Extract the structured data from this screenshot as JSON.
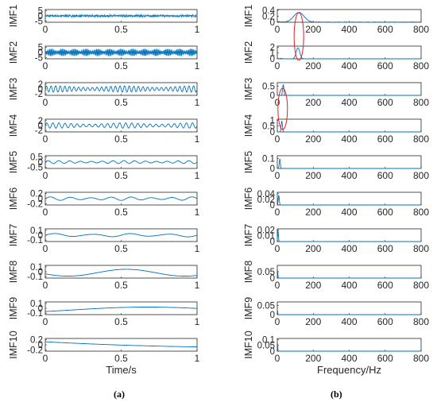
{
  "captions": {
    "left": "(a)",
    "right": "(b)"
  },
  "colors": {
    "signal": "#0072BD",
    "axis": "#262626",
    "highlight": "#E0202A"
  },
  "chart_data": [
    {
      "type": "line",
      "panel": "a",
      "xlabel": "Time/s",
      "xlim": [
        0,
        1
      ],
      "xticks": [
        "0",
        "0.5",
        "1"
      ],
      "subplots": [
        {
          "ylabel": "IMF1",
          "yticks": [
            "5",
            "0",
            "-5"
          ],
          "yvals": [
            5,
            0,
            -5
          ],
          "ylim": [
            -6,
            6
          ],
          "freq": 90,
          "amp": 0.6,
          "noise": true,
          "kind": "hf"
        },
        {
          "ylabel": "IMF2",
          "yticks": [
            "5",
            "0",
            "-5"
          ],
          "yvals": [
            5,
            0,
            -5
          ],
          "ylim": [
            -6,
            6
          ],
          "freq": 110,
          "amp": 3.5,
          "kind": "burst",
          "bursts": 13
        },
        {
          "ylabel": "IMF3",
          "yticks": [
            "2",
            "0",
            "-2"
          ],
          "yvals": [
            2,
            0,
            -2
          ],
          "ylim": [
            -2.6,
            2.6
          ],
          "freq": 33,
          "amp": 1.3,
          "kind": "am"
        },
        {
          "ylabel": "IMF4",
          "yticks": [
            "2",
            "0",
            "-2"
          ],
          "yvals": [
            2,
            0,
            -2
          ],
          "ylim": [
            -2.6,
            2.6
          ],
          "freq": 25,
          "amp": 1.1,
          "kind": "am"
        },
        {
          "ylabel": "IMF5",
          "yticks": [
            "0.5",
            "0",
            "-0.5"
          ],
          "yvals": [
            0.5,
            0,
            -0.5
          ],
          "ylim": [
            -0.6,
            0.6
          ],
          "freq": 14,
          "amp": 0.14,
          "kind": "am"
        },
        {
          "ylabel": "IMF6",
          "yticks": [
            "0.2",
            "0",
            "-0.2"
          ],
          "yvals": [
            0.2,
            0,
            -0.2
          ],
          "ylim": [
            -0.25,
            0.25
          ],
          "freq": 7.5,
          "amp": 0.07,
          "kind": "am"
        },
        {
          "ylabel": "IMF7",
          "yticks": [
            "0.1",
            "0",
            "-0.1"
          ],
          "yvals": [
            0.1,
            0,
            -0.1
          ],
          "ylim": [
            -0.13,
            0.13
          ],
          "freq": 4,
          "amp": 0.035,
          "kind": "am"
        },
        {
          "ylabel": "IMF8",
          "yticks": [
            "0.1",
            "0",
            "-0.1"
          ],
          "yvals": [
            0.1,
            0,
            -0.1
          ],
          "ylim": [
            -0.13,
            0.13
          ],
          "freq": 1.3,
          "amp": 0.07,
          "kind": "slow"
        },
        {
          "ylabel": "IMF9",
          "yticks": [
            "0.1",
            "0",
            "-0.1"
          ],
          "yvals": [
            0.1,
            0,
            -0.1
          ],
          "ylim": [
            -0.13,
            0.13
          ],
          "freq": 0.6,
          "amp": 0.045,
          "kind": "slow9"
        },
        {
          "ylabel": "IMF10",
          "yticks": [
            "0.2",
            "0",
            "-0.2"
          ],
          "yvals": [
            0.2,
            0,
            -0.2
          ],
          "ylim": [
            -0.25,
            0.25
          ],
          "kind": "trend"
        }
      ]
    },
    {
      "type": "line",
      "panel": "b",
      "xlabel": "Frequency/Hz",
      "xlim": [
        0,
        800
      ],
      "xticks": [
        "0",
        "200",
        "400",
        "600",
        "800"
      ],
      "subplots": [
        {
          "ylabel": "IMF1",
          "yticks": [
            "0.4",
            "0.2",
            "0"
          ],
          "yvals": [
            0.4,
            0.2,
            0
          ],
          "ylim": [
            0,
            0.42
          ],
          "peak": 120,
          "peakAmp": 0.32,
          "spread": 40,
          "floor": 0.01
        },
        {
          "ylabel": "IMF2",
          "yticks": [
            "2",
            "1",
            "0"
          ],
          "yvals": [
            2,
            1,
            0
          ],
          "ylim": [
            0,
            2.2
          ],
          "peak": 115,
          "peakAmp": 1.9,
          "spread": 14,
          "floor": 0.0
        },
        {
          "ylabel": "IMF3",
          "yticks": [
            "0.5",
            "0"
          ],
          "yvals": [
            0.5,
            0
          ],
          "ylim": [
            0,
            0.7
          ],
          "peak": 33,
          "peakAmp": 0.6,
          "spread": 5,
          "floor": 0.0
        },
        {
          "ylabel": "IMF4",
          "yticks": [
            "1",
            "0.5",
            "0"
          ],
          "yvals": [
            1,
            0.5,
            0
          ],
          "ylim": [
            0,
            1.1
          ],
          "peak": 25,
          "peakAmp": 0.95,
          "spread": 5,
          "floor": 0.0
        },
        {
          "ylabel": "IMF5",
          "yticks": [
            "0.1",
            "0"
          ],
          "yvals": [
            0.1,
            0
          ],
          "ylim": [
            0,
            0.13
          ],
          "peak": 14,
          "peakAmp": 0.1,
          "spread": 4,
          "floor": 0.0
        },
        {
          "ylabel": "IMF6",
          "yticks": [
            "0.04",
            "0.02",
            "0"
          ],
          "yvals": [
            0.04,
            0.02,
            0
          ],
          "ylim": [
            0,
            0.045
          ],
          "peak": 8,
          "peakAmp": 0.035,
          "spread": 4,
          "floor": 0.0
        },
        {
          "ylabel": "IMF7",
          "yticks": [
            "0.02",
            "0.01",
            "0"
          ],
          "yvals": [
            0.02,
            0.01,
            0
          ],
          "ylim": [
            0,
            0.022
          ],
          "peak": 4,
          "peakAmp": 0.02,
          "spread": 3,
          "floor": 0.0
        },
        {
          "ylabel": "IMF8",
          "yticks": [
            "0.05",
            "0"
          ],
          "yvals": [
            0.05,
            0
          ],
          "ylim": [
            0,
            0.1
          ],
          "peak": 2,
          "peakAmp": 0.06,
          "spread": 2,
          "floor": 0.0
        },
        {
          "ylabel": "IMF9",
          "yticks": [
            "0.05",
            "0"
          ],
          "yvals": [
            0.05,
            0
          ],
          "ylim": [
            0,
            0.07
          ],
          "peak": 1,
          "peakAmp": 0.05,
          "spread": 1,
          "floor": 0.0
        },
        {
          "ylabel": "IMF10",
          "yticks": [
            "0.1",
            "0.05",
            "0"
          ],
          "yvals": [
            0.1,
            0.05,
            0
          ],
          "ylim": [
            0,
            0.11
          ],
          "peak": 1,
          "peakAmp": 0.08,
          "spread": 2,
          "floor": 0.0
        }
      ]
    }
  ]
}
